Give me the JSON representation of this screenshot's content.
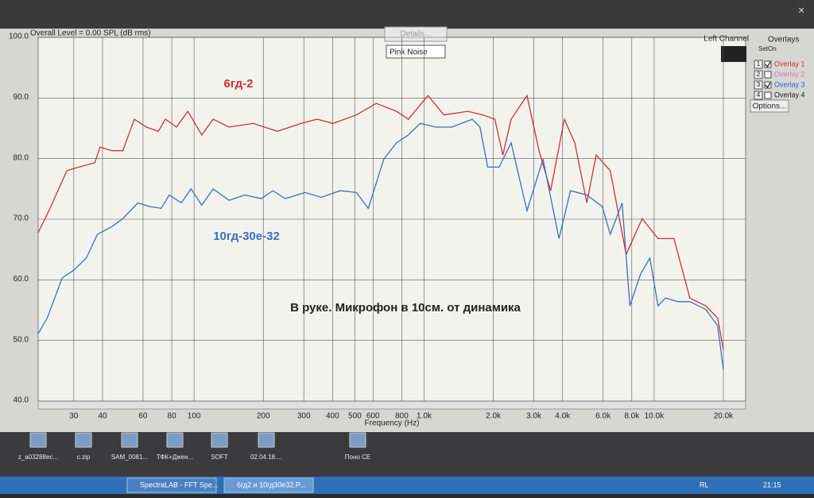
{
  "window": {
    "overall_level": "Overall Level = 0.00 SPL (dB rms)",
    "details_button": "Details...",
    "noise_select": "Pink Noise",
    "channel": "Left Channel",
    "x_axis_label": "Frequency (Hz)"
  },
  "overlays": {
    "title": "Overlays",
    "set_header": "Set",
    "on_header": "On",
    "items": [
      {
        "set": "1",
        "label": "Overlay 1",
        "color": "#d03030",
        "checked": true
      },
      {
        "set": "2",
        "label": "Overlay 2",
        "color": "#e070c0",
        "checked": false
      },
      {
        "set": "3",
        "label": "Overlay 3",
        "color": "#3060d0",
        "checked": true
      },
      {
        "set": "4",
        "label": "Overlay 4",
        "color": "#222222",
        "checked": false
      }
    ],
    "options_button": "Options..."
  },
  "chart_data": {
    "type": "line",
    "annotation": "В руке. Микрофон в 10см. от динамика",
    "log_x": true,
    "grid": true,
    "xlim": [
      21,
      25000
    ],
    "ylim": [
      40,
      100
    ],
    "xticks": [
      30,
      40,
      60,
      80,
      100,
      200,
      300,
      400,
      500,
      600,
      800,
      {
        "value": 1000,
        "label": "1.0k"
      },
      {
        "value": 2000,
        "label": "2.0k"
      },
      {
        "value": 3000,
        "label": "3.0k"
      },
      {
        "value": 4000,
        "label": "4.0k"
      },
      {
        "value": 6000,
        "label": "6.0k"
      },
      {
        "value": 8000,
        "label": "8.0k"
      },
      {
        "value": 10000,
        "label": "10.0k"
      },
      {
        "value": 20000,
        "label": "20.0k"
      }
    ],
    "yticks": [
      {
        "value": 40,
        "label": "40.0"
      },
      {
        "value": 50,
        "label": "50.0"
      },
      {
        "value": 60,
        "label": "60.0"
      },
      {
        "value": 70,
        "label": "70.0"
      },
      {
        "value": 80,
        "label": "80.0"
      },
      {
        "value": 90,
        "label": "90.0"
      },
      {
        "value": 100,
        "label": "100.0"
      }
    ],
    "series": [
      {
        "name": "6гд-2",
        "color": "#d03030",
        "x": [
          21,
          23,
          28,
          31.5,
          37,
          39,
          44,
          49,
          55,
          62,
          70,
          75,
          84,
          94,
          108,
          121,
          142,
          181,
          230,
          292,
          343,
          401,
          508,
          620,
          758,
          854,
          1040,
          1220,
          1550,
          1800,
          2030,
          2200,
          2390,
          2800,
          3160,
          3550,
          4070,
          4520,
          5100,
          5600,
          6450,
          7560,
          8870,
          10400,
          12200,
          14300,
          16800,
          18900,
          20000
        ],
        "values": [
          67.8,
          70.8,
          78,
          78.6,
          79.3,
          81.9,
          81.3,
          81.3,
          86.5,
          85.2,
          84.5,
          86.5,
          85.2,
          87.8,
          83.9,
          86.5,
          85.2,
          85.8,
          84.5,
          85.8,
          86.5,
          85.8,
          87.2,
          89.1,
          87.8,
          86.5,
          90.4,
          87.2,
          87.8,
          87.2,
          86.5,
          80.6,
          86.5,
          90.4,
          81.3,
          74.7,
          86.5,
          82.6,
          72.7,
          80.6,
          78,
          64.2,
          70.1,
          66.8,
          66.8,
          57,
          55.7,
          53.7,
          48.5
        ]
      },
      {
        "name": "10гд-30е-32",
        "color": "#3a6fc0",
        "x": [
          21,
          23,
          26.7,
          30,
          34,
          38,
          44,
          49,
          57,
          64,
          72,
          78,
          88,
          97,
          108,
          121,
          142,
          166,
          196,
          220,
          249,
          304,
          357,
          432,
          508,
          572,
          668,
          758,
          854,
          962,
          1125,
          1320,
          1620,
          1750,
          1890,
          2120,
          2390,
          2800,
          3290,
          3860,
          4330,
          5100,
          5950,
          6450,
          7260,
          7850,
          8720,
          9580,
          10400,
          11200,
          12700,
          14300,
          16800,
          18900,
          20000
        ],
        "values": [
          51.1,
          53.7,
          60.3,
          61.6,
          63.6,
          67.5,
          68.8,
          70.1,
          72.7,
          72.1,
          71.8,
          74,
          72.7,
          75,
          72.3,
          75,
          73.1,
          74,
          73.4,
          74.7,
          73.4,
          74.4,
          73.6,
          74.7,
          74.4,
          71.8,
          79.9,
          82.6,
          83.9,
          85.8,
          85.2,
          85.2,
          86.5,
          85.2,
          78.6,
          78.6,
          82.6,
          71.4,
          79.9,
          66.8,
          74.7,
          74,
          72.1,
          67.5,
          72.7,
          55.7,
          60.9,
          63.6,
          55.7,
          57,
          56.4,
          56.4,
          55.1,
          52.4,
          45.2
        ]
      }
    ]
  },
  "desktop": {
    "icons": [
      "z_a03288ec...",
      "c.zip",
      "SAM_0081...",
      "ТФК+Джен...",
      "SOFT",
      "02.04.18....",
      "Поно CE"
    ]
  },
  "taskbar": {
    "tasks": [
      "SpectraLAB - FFT Spe...",
      "6гд2 и 10гд30е32.P..."
    ],
    "language": "RL",
    "clock": "21:15"
  }
}
